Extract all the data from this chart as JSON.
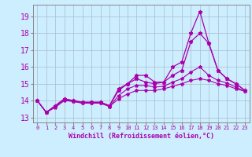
{
  "x": [
    0,
    1,
    2,
    3,
    4,
    5,
    6,
    7,
    8,
    9,
    10,
    11,
    12,
    13,
    14,
    15,
    16,
    17,
    18,
    19,
    20,
    21,
    22,
    23
  ],
  "line1": [
    14.0,
    13.3,
    13.7,
    14.1,
    14.0,
    13.9,
    13.9,
    13.9,
    13.7,
    14.7,
    15.0,
    15.5,
    15.5,
    15.1,
    15.1,
    16.0,
    16.3,
    18.0,
    19.3,
    17.4,
    15.8,
    15.3,
    15.0,
    14.6
  ],
  "line2": [
    14.0,
    13.3,
    13.7,
    14.1,
    14.0,
    13.9,
    13.9,
    13.9,
    13.7,
    14.6,
    15.0,
    15.3,
    15.1,
    15.0,
    15.1,
    15.5,
    15.8,
    17.5,
    18.0,
    17.4,
    15.8,
    15.3,
    15.0,
    14.6
  ],
  "line3": [
    14.0,
    13.3,
    13.65,
    14.05,
    13.95,
    13.85,
    13.85,
    13.85,
    13.65,
    14.3,
    14.7,
    14.9,
    14.9,
    14.8,
    14.85,
    15.1,
    15.3,
    15.7,
    16.0,
    15.5,
    15.2,
    15.05,
    14.8,
    14.55
  ],
  "line4": [
    14.0,
    13.3,
    13.6,
    14.0,
    13.95,
    13.85,
    13.85,
    13.85,
    13.65,
    14.1,
    14.4,
    14.6,
    14.6,
    14.6,
    14.7,
    14.85,
    15.0,
    15.2,
    15.3,
    15.2,
    15.0,
    14.9,
    14.7,
    14.55
  ],
  "line_color": "#aa00aa",
  "bg_color": "#cceeff",
  "grid_color": "#aabbcc",
  "xlabel": "Windchill (Refroidissement éolien,°C)",
  "yticks": [
    13,
    14,
    15,
    16,
    17,
    18,
    19
  ],
  "xticks": [
    0,
    1,
    2,
    3,
    4,
    5,
    6,
    7,
    8,
    9,
    10,
    11,
    12,
    13,
    14,
    15,
    16,
    17,
    18,
    19,
    20,
    21,
    22,
    23
  ],
  "xlim": [
    -0.5,
    23.5
  ],
  "ylim": [
    12.7,
    19.7
  ],
  "xlabel_fontsize": 6,
  "ytick_fontsize": 7,
  "xtick_fontsize": 5
}
